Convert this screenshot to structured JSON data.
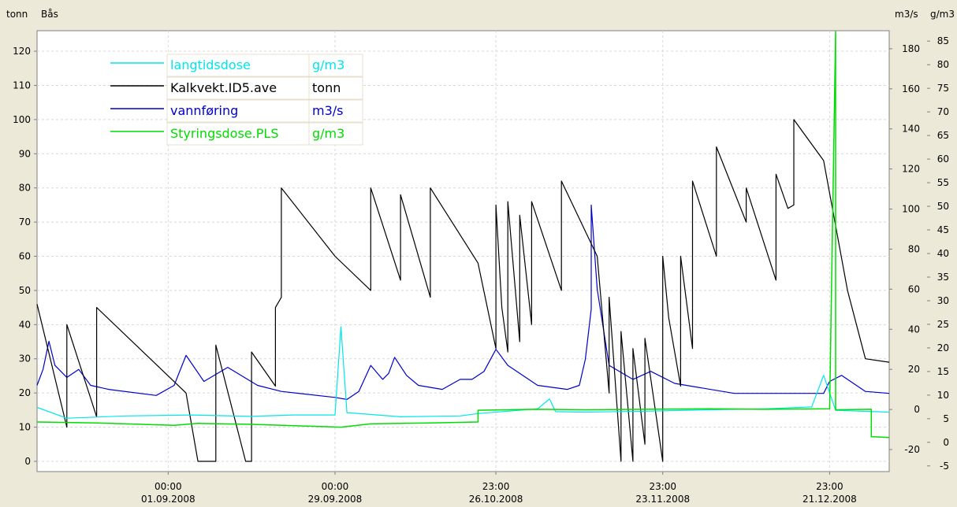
{
  "chart_data": {
    "type": "line",
    "axes": {
      "left": {
        "label": "tonn",
        "ylim": [
          -3,
          126
        ],
        "ticks": [
          0,
          10,
          20,
          30,
          40,
          50,
          60,
          70,
          80,
          90,
          100,
          110,
          120
        ]
      },
      "right1": {
        "label": "m3/s",
        "ylim": [
          -31,
          189
        ],
        "ticks": [
          -20,
          0,
          20,
          40,
          60,
          80,
          100,
          120,
          140,
          160,
          180
        ]
      },
      "right2": {
        "label": "g/m3",
        "ylim": [
          -6.2,
          87.2
        ],
        "ticks": [
          -5,
          0,
          5,
          10,
          15,
          20,
          25,
          30,
          35,
          40,
          45,
          50,
          55,
          60,
          65,
          70,
          75,
          80,
          85
        ]
      }
    },
    "top_label": "Bås",
    "x_start": "2008-08-10",
    "x_end": "2008-12-31",
    "x_ticks": [
      {
        "date": "2008-09-01",
        "time": "00:00",
        "label": "01.09.2008"
      },
      {
        "date": "2008-09-29",
        "time": "00:00",
        "label": "29.09.2008"
      },
      {
        "date": "2008-10-26",
        "time": "23:00",
        "label": "26.10.2008"
      },
      {
        "date": "2008-11-23",
        "time": "23:00",
        "label": "23.11.2008"
      },
      {
        "date": "2008-12-21",
        "time": "23:00",
        "label": "21.12.2008"
      }
    ],
    "grid": true,
    "legend_position": "top-left",
    "series": [
      {
        "name": "langtidsdose",
        "unit": "g/m3",
        "axis": "right2",
        "color": "#00e5ee",
        "points": [
          [
            "2008-08-10",
            7.4
          ],
          [
            "2008-08-15",
            5.1
          ],
          [
            "2008-08-25",
            5.6
          ],
          [
            "2008-09-05",
            5.8
          ],
          [
            "2008-09-15",
            5.5
          ],
          [
            "2008-09-22",
            5.8
          ],
          [
            "2008-09-29",
            5.8
          ],
          [
            "2008-09-30",
            24.5
          ],
          [
            "2008-10-01",
            6.3
          ],
          [
            "2008-10-10",
            5.4
          ],
          [
            "2008-10-20",
            5.6
          ],
          [
            "2008-10-23",
            6.1
          ],
          [
            "2008-11-02",
            7.1
          ],
          [
            "2008-11-04",
            9.2
          ],
          [
            "2008-11-05",
            6.5
          ],
          [
            "2008-11-10",
            6.4
          ],
          [
            "2008-11-20",
            6.6
          ],
          [
            "2008-12-01",
            6.9
          ],
          [
            "2008-12-10",
            7.1
          ],
          [
            "2008-12-18",
            7.5
          ],
          [
            "2008-12-20",
            14.2
          ],
          [
            "2008-12-22",
            6.8
          ],
          [
            "2008-12-31",
            6.4
          ]
        ]
      },
      {
        "name": "Kalkvekt.ID5.ave",
        "unit": "tonn",
        "axis": "left",
        "color": "#000000",
        "points": [
          [
            "2008-08-10",
            46
          ],
          [
            "2008-08-15",
            10
          ],
          [
            "2008-08-15",
            40
          ],
          [
            "2008-08-20",
            13
          ],
          [
            "2008-08-20",
            45
          ],
          [
            "2008-09-04",
            20
          ],
          [
            "2008-09-06",
            0
          ],
          [
            "2008-09-09",
            0
          ],
          [
            "2008-09-09",
            34
          ],
          [
            "2008-09-14",
            0
          ],
          [
            "2008-09-15",
            0
          ],
          [
            "2008-09-15",
            32
          ],
          [
            "2008-09-19",
            22
          ],
          [
            "2008-09-19",
            45
          ],
          [
            "2008-09-20",
            48
          ],
          [
            "2008-09-20",
            80
          ],
          [
            "2008-09-29",
            60
          ],
          [
            "2008-10-05",
            50
          ],
          [
            "2008-10-05",
            80
          ],
          [
            "2008-10-10",
            53
          ],
          [
            "2008-10-10",
            78
          ],
          [
            "2008-10-15",
            48
          ],
          [
            "2008-10-15",
            80
          ],
          [
            "2008-10-23",
            58
          ],
          [
            "2008-10-26",
            33
          ],
          [
            "2008-10-26",
            75
          ],
          [
            "2008-10-27",
            45
          ],
          [
            "2008-10-28",
            32
          ],
          [
            "2008-10-28",
            76
          ],
          [
            "2008-10-30",
            35
          ],
          [
            "2008-10-30",
            72
          ],
          [
            "2008-11-01",
            40
          ],
          [
            "2008-11-01",
            76
          ],
          [
            "2008-11-06",
            50
          ],
          [
            "2008-11-06",
            82
          ],
          [
            "2008-11-12",
            60
          ],
          [
            "2008-11-14",
            20
          ],
          [
            "2008-11-14",
            48
          ],
          [
            "2008-11-16",
            0
          ],
          [
            "2008-11-16",
            38
          ],
          [
            "2008-11-18",
            0
          ],
          [
            "2008-11-18",
            33
          ],
          [
            "2008-11-20",
            5
          ],
          [
            "2008-11-20",
            36
          ],
          [
            "2008-11-23",
            0
          ],
          [
            "2008-11-23",
            60
          ],
          [
            "2008-11-24",
            42
          ],
          [
            "2008-11-26",
            22
          ],
          [
            "2008-11-26",
            60
          ],
          [
            "2008-11-28",
            33
          ],
          [
            "2008-11-28",
            82
          ],
          [
            "2008-12-02",
            60
          ],
          [
            "2008-12-02",
            92
          ],
          [
            "2008-12-07",
            70
          ],
          [
            "2008-12-07",
            80
          ],
          [
            "2008-12-12",
            53
          ],
          [
            "2008-12-12",
            84
          ],
          [
            "2008-12-14",
            74
          ],
          [
            "2008-12-15",
            75
          ],
          [
            "2008-12-15",
            100
          ],
          [
            "2008-12-20",
            88
          ],
          [
            "2008-12-24",
            50
          ],
          [
            "2008-12-27",
            30
          ],
          [
            "2008-12-31",
            29
          ]
        ]
      },
      {
        "name": "vannføring",
        "unit": "m3/s",
        "axis": "right1",
        "color": "#0000cc",
        "points": [
          [
            "2008-08-10",
            12
          ],
          [
            "2008-08-11",
            20
          ],
          [
            "2008-08-12",
            34
          ],
          [
            "2008-08-13",
            22
          ],
          [
            "2008-08-15",
            16
          ],
          [
            "2008-08-17",
            20
          ],
          [
            "2008-08-19",
            12
          ],
          [
            "2008-08-22",
            10
          ],
          [
            "2008-08-30",
            7
          ],
          [
            "2008-09-02",
            12
          ],
          [
            "2008-09-04",
            27
          ],
          [
            "2008-09-07",
            14
          ],
          [
            "2008-09-11",
            21
          ],
          [
            "2008-09-16",
            12
          ],
          [
            "2008-09-20",
            9
          ],
          [
            "2008-09-29",
            6
          ],
          [
            "2008-10-01",
            5
          ],
          [
            "2008-10-03",
            9
          ],
          [
            "2008-10-05",
            22
          ],
          [
            "2008-10-07",
            15
          ],
          [
            "2008-10-08",
            18
          ],
          [
            "2008-10-09",
            26
          ],
          [
            "2008-10-11",
            17
          ],
          [
            "2008-10-13",
            12
          ],
          [
            "2008-10-17",
            10
          ],
          [
            "2008-10-20",
            15
          ],
          [
            "2008-10-22",
            15
          ],
          [
            "2008-10-24",
            19
          ],
          [
            "2008-10-26",
            30
          ],
          [
            "2008-10-28",
            22
          ],
          [
            "2008-11-02",
            12
          ],
          [
            "2008-11-07",
            10
          ],
          [
            "2008-11-09",
            12
          ],
          [
            "2008-11-10",
            25
          ],
          [
            "2008-11-11",
            50
          ],
          [
            "2008-11-11",
            102
          ],
          [
            "2008-11-12",
            60
          ],
          [
            "2008-11-14",
            22
          ],
          [
            "2008-11-18",
            15
          ],
          [
            "2008-11-21",
            19
          ],
          [
            "2008-11-25",
            13
          ],
          [
            "2008-12-05",
            8
          ],
          [
            "2008-12-15",
            8
          ],
          [
            "2008-12-20",
            8
          ],
          [
            "2008-12-21",
            14
          ],
          [
            "2008-12-23",
            17
          ],
          [
            "2008-12-27",
            9
          ],
          [
            "2008-12-31",
            8
          ]
        ]
      },
      {
        "name": "Styringsdose.PLS",
        "unit": "g/m3",
        "axis": "right2",
        "color": "#00dd00",
        "points": [
          [
            "2008-08-10",
            4.3
          ],
          [
            "2008-08-20",
            4.1
          ],
          [
            "2008-09-02",
            3.6
          ],
          [
            "2008-09-06",
            4.0
          ],
          [
            "2008-09-15",
            3.8
          ],
          [
            "2008-09-25",
            3.4
          ],
          [
            "2008-09-30",
            3.2
          ],
          [
            "2008-10-05",
            3.9
          ],
          [
            "2008-10-15",
            4.1
          ],
          [
            "2008-10-23",
            4.3
          ],
          [
            "2008-10-23",
            6.8
          ],
          [
            "2008-11-02",
            7.0
          ],
          [
            "2008-11-10",
            6.9
          ],
          [
            "2008-11-20",
            7.0
          ],
          [
            "2008-12-01",
            7.1
          ],
          [
            "2008-12-10",
            7.0
          ],
          [
            "2008-12-21",
            7.1
          ],
          [
            "2008-12-22",
            87
          ],
          [
            "2008-12-22",
            6.9
          ],
          [
            "2008-12-28",
            7.0
          ],
          [
            "2008-12-28",
            1.2
          ],
          [
            "2008-12-31",
            1.0
          ]
        ]
      }
    ]
  }
}
